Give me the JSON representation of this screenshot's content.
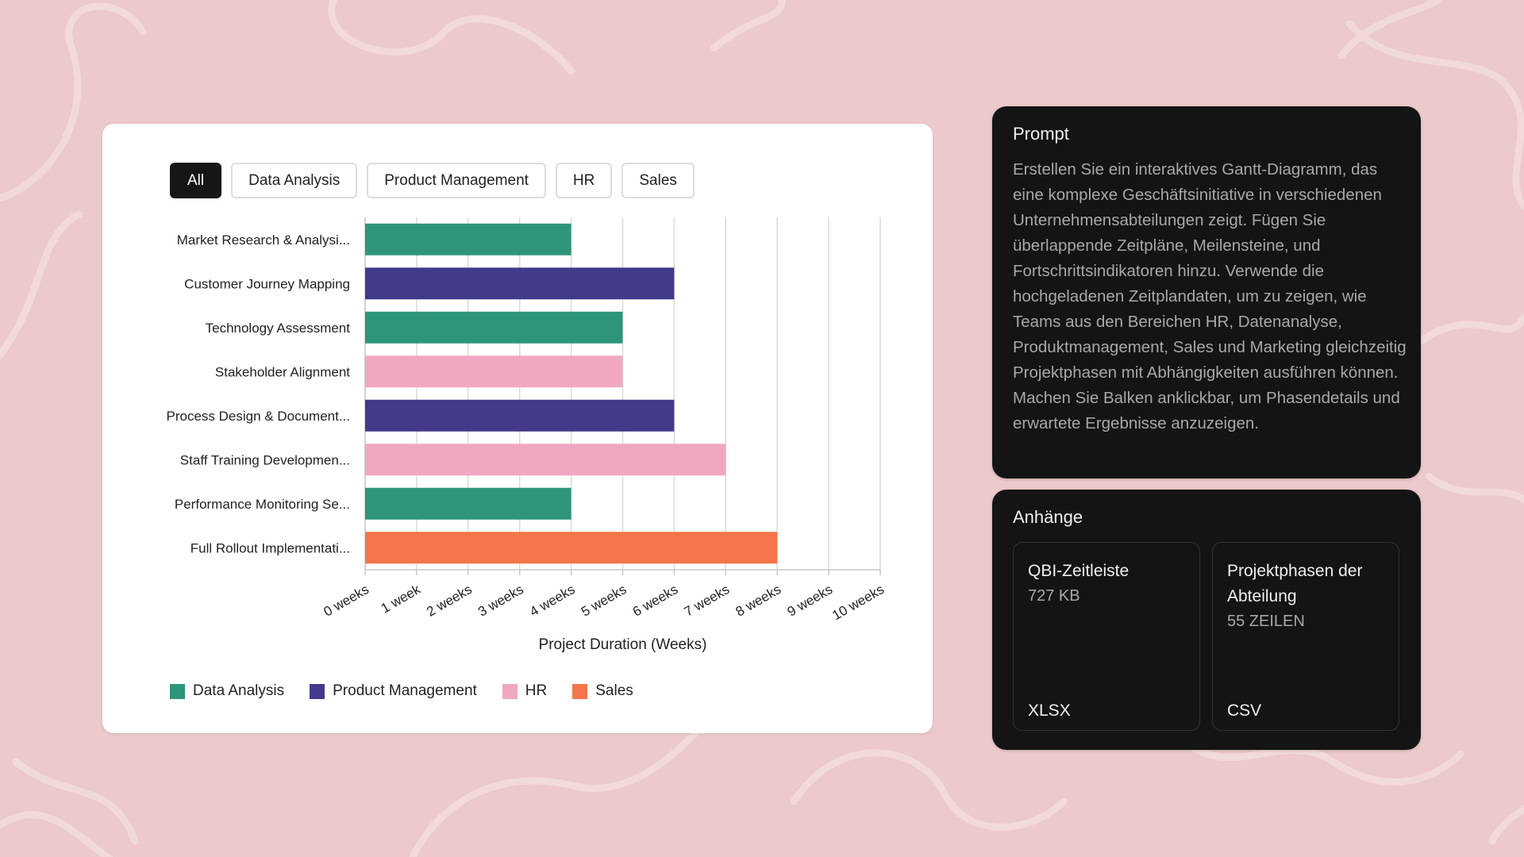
{
  "filters": {
    "all": "All",
    "data_analysis": "Data Analysis",
    "product_management": "Product Management",
    "hr": "HR",
    "sales": "Sales"
  },
  "colors": {
    "background": "#ecc9cb",
    "data_analysis": "#2e957a",
    "product_management": "#433a8b",
    "hr": "#f0a8c2",
    "sales": "#f37549"
  },
  "chart_data": {
    "type": "bar",
    "orientation": "horizontal",
    "xlabel": "Project Duration (Weeks)",
    "xlim": [
      0,
      10
    ],
    "grid": true,
    "ticks": [
      "0 weeks",
      "1 week",
      "2 weeks",
      "3 weeks",
      "4 weeks",
      "5 weeks",
      "6 weeks",
      "7 weeks",
      "8 weeks",
      "9 weeks",
      "10 weeks"
    ],
    "categories": [
      "Market Research & Analysi...",
      "Customer Journey Mapping",
      "Technology Assessment",
      "Stakeholder Alignment",
      "Process Design & Document...",
      "Staff Training Developmen...",
      "Performance Monitoring Se...",
      "Full Rollout Implementati..."
    ],
    "values": [
      4,
      6,
      5,
      5,
      6,
      7,
      4,
      8
    ],
    "departments": [
      "Data Analysis",
      "Product Management",
      "Data Analysis",
      "HR",
      "Product Management",
      "HR",
      "Data Analysis",
      "Sales"
    ],
    "legend": [
      {
        "label": "Data Analysis",
        "color": "#2e957a"
      },
      {
        "label": "Product Management",
        "color": "#433a8b"
      },
      {
        "label": "HR",
        "color": "#f0a8c2"
      },
      {
        "label": "Sales",
        "color": "#f37549"
      }
    ]
  },
  "prompt": {
    "title": "Prompt",
    "text": "Erstellen Sie ein interaktives Gantt-Diagramm, das eine komplexe Geschäftsinitiative in verschiedenen Unternehmensabteilungen zeigt. Fügen Sie überlappende Zeitpläne, Meilensteine, und Fortschrittsindikatoren hinzu. Verwende die hochgeladenen Zeitplandaten, um zu zeigen, wie Teams aus den Bereichen HR, Datenanalyse, Produktmanagement, Sales und Marketing gleichzeitig Projektphasen mit Abhängigkeiten ausführen können. Machen Sie Balken anklickbar, um Phasendetails und erwartete Ergebnisse anzuzeigen."
  },
  "attachments": {
    "title": "Anhänge",
    "items": [
      {
        "name": "QBI-Zeitleiste",
        "meta": "727 KB",
        "type": "XLSX"
      },
      {
        "name": "Projektphasen der Abteilung",
        "meta": "55 ZEILEN",
        "type": "CSV"
      }
    ]
  }
}
